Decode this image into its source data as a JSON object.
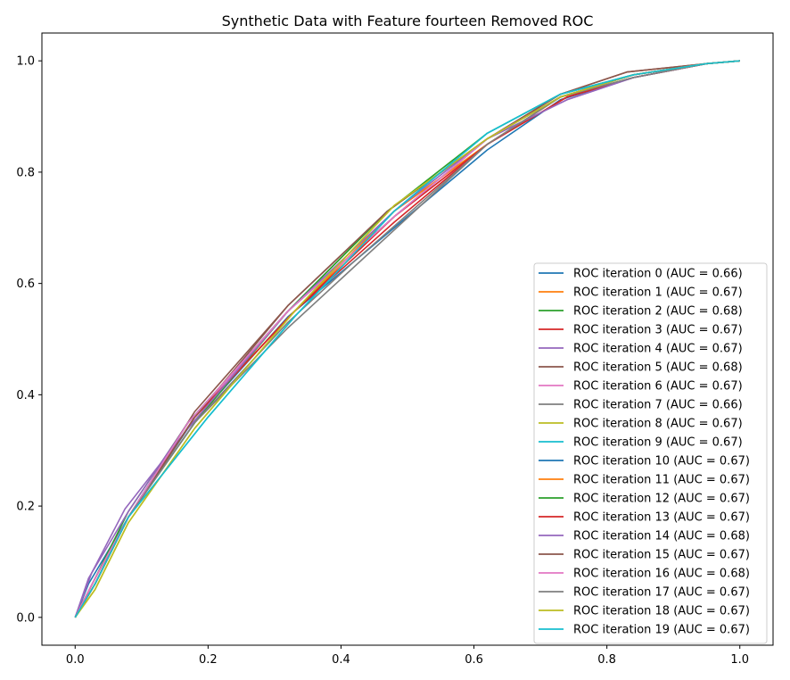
{
  "chart_data": {
    "type": "line",
    "title": "Synthetic Data with Feature fourteen Removed ROC",
    "xlabel": "",
    "ylabel": "",
    "xlim": [
      -0.05,
      1.05
    ],
    "ylim": [
      -0.05,
      1.05
    ],
    "x_ticks": [
      "0.0",
      "0.2",
      "0.4",
      "0.6",
      "0.8",
      "1.0"
    ],
    "y_ticks": [
      "0.0",
      "0.2",
      "0.4",
      "0.6",
      "0.8",
      "1.0"
    ],
    "grid": false,
    "legend_position": "lower-right",
    "series": [
      {
        "name": "ROC iteration 0 (AUC = 0.66)",
        "color": "#1f77b4",
        "points": [
          [
            0,
            0
          ],
          [
            0.02,
            0.06
          ],
          [
            0.08,
            0.18
          ],
          [
            0.17,
            0.34
          ],
          [
            0.32,
            0.54
          ],
          [
            0.5,
            0.72
          ],
          [
            0.62,
            0.84
          ],
          [
            0.73,
            0.93
          ],
          [
            0.84,
            0.97
          ],
          [
            0.95,
            0.995
          ],
          [
            1,
            1
          ]
        ]
      },
      {
        "name": "ROC iteration 1 (AUC = 0.67)",
        "color": "#ff7f0e",
        "points": [
          [
            0,
            0
          ],
          [
            0.03,
            0.06
          ],
          [
            0.08,
            0.18
          ],
          [
            0.18,
            0.36
          ],
          [
            0.33,
            0.55
          ],
          [
            0.48,
            0.73
          ],
          [
            0.62,
            0.85
          ],
          [
            0.73,
            0.935
          ],
          [
            0.84,
            0.975
          ],
          [
            0.95,
            0.995
          ],
          [
            1,
            1
          ]
        ]
      },
      {
        "name": "ROC iteration 2 (AUC = 0.68)",
        "color": "#2ca02c",
        "points": [
          [
            0,
            0
          ],
          [
            0.03,
            0.07
          ],
          [
            0.08,
            0.19
          ],
          [
            0.17,
            0.35
          ],
          [
            0.32,
            0.55
          ],
          [
            0.47,
            0.73
          ],
          [
            0.62,
            0.87
          ],
          [
            0.73,
            0.94
          ],
          [
            0.84,
            0.975
          ],
          [
            0.95,
            0.995
          ],
          [
            1,
            1
          ]
        ]
      },
      {
        "name": "ROC iteration 3 (AUC = 0.67)",
        "color": "#d62728",
        "points": [
          [
            0,
            0
          ],
          [
            0.03,
            0.06
          ],
          [
            0.08,
            0.18
          ],
          [
            0.18,
            0.36
          ],
          [
            0.33,
            0.55
          ],
          [
            0.48,
            0.71
          ],
          [
            0.62,
            0.85
          ],
          [
            0.74,
            0.935
          ],
          [
            0.84,
            0.97
          ],
          [
            0.95,
            0.995
          ],
          [
            1,
            1
          ]
        ]
      },
      {
        "name": "ROC iteration 4 (AUC = 0.67)",
        "color": "#9467bd",
        "points": [
          [
            0,
            0
          ],
          [
            0.02,
            0.07
          ],
          [
            0.08,
            0.19
          ],
          [
            0.17,
            0.35
          ],
          [
            0.32,
            0.55
          ],
          [
            0.48,
            0.72
          ],
          [
            0.62,
            0.86
          ],
          [
            0.74,
            0.93
          ],
          [
            0.84,
            0.97
          ],
          [
            0.95,
            0.995
          ],
          [
            1,
            1
          ]
        ]
      },
      {
        "name": "ROC iteration 5 (AUC = 0.68)",
        "color": "#8c564b",
        "points": [
          [
            0,
            0
          ],
          [
            0.03,
            0.07
          ],
          [
            0.08,
            0.18
          ],
          [
            0.18,
            0.37
          ],
          [
            0.32,
            0.56
          ],
          [
            0.47,
            0.73
          ],
          [
            0.62,
            0.86
          ],
          [
            0.73,
            0.94
          ],
          [
            0.83,
            0.98
          ],
          [
            0.95,
            0.995
          ],
          [
            1,
            1
          ]
        ]
      },
      {
        "name": "ROC iteration 6 (AUC = 0.67)",
        "color": "#e377c2",
        "points": [
          [
            0,
            0
          ],
          [
            0.03,
            0.07
          ],
          [
            0.08,
            0.18
          ],
          [
            0.18,
            0.36
          ],
          [
            0.32,
            0.55
          ],
          [
            0.48,
            0.72
          ],
          [
            0.62,
            0.85
          ],
          [
            0.73,
            0.935
          ],
          [
            0.84,
            0.975
          ],
          [
            0.95,
            0.995
          ],
          [
            1,
            1
          ]
        ]
      },
      {
        "name": "ROC iteration 7 (AUC = 0.66)",
        "color": "#7f7f7f",
        "points": [
          [
            0,
            0
          ],
          [
            0.03,
            0.06
          ],
          [
            0.08,
            0.18
          ],
          [
            0.18,
            0.35
          ],
          [
            0.32,
            0.52
          ],
          [
            0.42,
            0.63
          ],
          [
            0.62,
            0.85
          ],
          [
            0.73,
            0.935
          ],
          [
            0.84,
            0.97
          ],
          [
            0.95,
            0.995
          ],
          [
            1,
            1
          ]
        ]
      },
      {
        "name": "ROC iteration 8 (AUC = 0.67)",
        "color": "#bcbd22",
        "points": [
          [
            0,
            0
          ],
          [
            0.03,
            0.05
          ],
          [
            0.08,
            0.17
          ],
          [
            0.18,
            0.34
          ],
          [
            0.33,
            0.55
          ],
          [
            0.48,
            0.74
          ],
          [
            0.62,
            0.86
          ],
          [
            0.73,
            0.935
          ],
          [
            0.84,
            0.975
          ],
          [
            0.95,
            0.995
          ],
          [
            1,
            1
          ]
        ]
      },
      {
        "name": "ROC iteration 9 (AUC = 0.67)",
        "color": "#17becf",
        "points": [
          [
            0,
            0
          ],
          [
            0.03,
            0.06
          ],
          [
            0.08,
            0.18
          ],
          [
            0.2,
            0.36
          ],
          [
            0.33,
            0.54
          ],
          [
            0.48,
            0.73
          ],
          [
            0.62,
            0.87
          ],
          [
            0.73,
            0.94
          ],
          [
            0.84,
            0.975
          ],
          [
            0.95,
            0.995
          ],
          [
            1,
            1
          ]
        ]
      },
      {
        "name": "ROC iteration 10 (AUC = 0.67)",
        "color": "#1f77b4",
        "points": [
          [
            0,
            0
          ],
          [
            0.03,
            0.06
          ],
          [
            0.08,
            0.18
          ],
          [
            0.17,
            0.35
          ],
          [
            0.32,
            0.55
          ],
          [
            0.48,
            0.72
          ],
          [
            0.62,
            0.86
          ],
          [
            0.73,
            0.935
          ],
          [
            0.84,
            0.975
          ],
          [
            0.95,
            0.995
          ],
          [
            1,
            1
          ]
        ]
      },
      {
        "name": "ROC iteration 11 (AUC = 0.67)",
        "color": "#ff7f0e",
        "points": [
          [
            0,
            0
          ],
          [
            0.03,
            0.06
          ],
          [
            0.08,
            0.18
          ],
          [
            0.18,
            0.36
          ],
          [
            0.33,
            0.55
          ],
          [
            0.48,
            0.73
          ],
          [
            0.62,
            0.85
          ],
          [
            0.73,
            0.935
          ],
          [
            0.84,
            0.975
          ],
          [
            0.95,
            0.995
          ],
          [
            1,
            1
          ]
        ]
      },
      {
        "name": "ROC iteration 12 (AUC = 0.67)",
        "color": "#2ca02c",
        "points": [
          [
            0,
            0
          ],
          [
            0.03,
            0.06
          ],
          [
            0.08,
            0.18
          ],
          [
            0.18,
            0.35
          ],
          [
            0.32,
            0.55
          ],
          [
            0.47,
            0.73
          ],
          [
            0.62,
            0.86
          ],
          [
            0.73,
            0.935
          ],
          [
            0.84,
            0.975
          ],
          [
            0.95,
            0.995
          ],
          [
            1,
            1
          ]
        ]
      },
      {
        "name": "ROC iteration 13 (AUC = 0.67)",
        "color": "#d62728",
        "points": [
          [
            0,
            0
          ],
          [
            0.03,
            0.06
          ],
          [
            0.08,
            0.18
          ],
          [
            0.18,
            0.36
          ],
          [
            0.33,
            0.55
          ],
          [
            0.48,
            0.72
          ],
          [
            0.62,
            0.85
          ],
          [
            0.74,
            0.935
          ],
          [
            0.84,
            0.97
          ],
          [
            0.95,
            0.995
          ],
          [
            1,
            1
          ]
        ]
      },
      {
        "name": "ROC iteration 14 (AUC = 0.68)",
        "color": "#9467bd",
        "points": [
          [
            0,
            0
          ],
          [
            0.025,
            0.08
          ],
          [
            0.075,
            0.195
          ],
          [
            0.17,
            0.34
          ],
          [
            0.32,
            0.55
          ],
          [
            0.48,
            0.73
          ],
          [
            0.62,
            0.86
          ],
          [
            0.74,
            0.93
          ],
          [
            0.84,
            0.97
          ],
          [
            0.95,
            0.995
          ],
          [
            1,
            1
          ]
        ]
      },
      {
        "name": "ROC iteration 15 (AUC = 0.67)",
        "color": "#8c564b",
        "points": [
          [
            0,
            0
          ],
          [
            0.03,
            0.07
          ],
          [
            0.08,
            0.18
          ],
          [
            0.18,
            0.36
          ],
          [
            0.32,
            0.56
          ],
          [
            0.47,
            0.73
          ],
          [
            0.62,
            0.86
          ],
          [
            0.73,
            0.94
          ],
          [
            0.83,
            0.98
          ],
          [
            0.95,
            0.995
          ],
          [
            1,
            1
          ]
        ]
      },
      {
        "name": "ROC iteration 16 (AUC = 0.68)",
        "color": "#e377c2",
        "points": [
          [
            0,
            0
          ],
          [
            0.03,
            0.07
          ],
          [
            0.08,
            0.18
          ],
          [
            0.17,
            0.35
          ],
          [
            0.32,
            0.55
          ],
          [
            0.48,
            0.72
          ],
          [
            0.62,
            0.86
          ],
          [
            0.73,
            0.935
          ],
          [
            0.84,
            0.975
          ],
          [
            0.95,
            0.995
          ],
          [
            1,
            1
          ]
        ]
      },
      {
        "name": "ROC iteration 17 (AUC = 0.67)",
        "color": "#7f7f7f",
        "points": [
          [
            0,
            0
          ],
          [
            0.03,
            0.06
          ],
          [
            0.08,
            0.18
          ],
          [
            0.18,
            0.35
          ],
          [
            0.32,
            0.53
          ],
          [
            0.42,
            0.64
          ],
          [
            0.62,
            0.85
          ],
          [
            0.73,
            0.935
          ],
          [
            0.84,
            0.97
          ],
          [
            0.95,
            0.995
          ],
          [
            1,
            1
          ]
        ]
      },
      {
        "name": "ROC iteration 18 (AUC = 0.67)",
        "color": "#bcbd22",
        "points": [
          [
            0,
            0
          ],
          [
            0.03,
            0.05
          ],
          [
            0.08,
            0.17
          ],
          [
            0.18,
            0.34
          ],
          [
            0.33,
            0.55
          ],
          [
            0.48,
            0.74
          ],
          [
            0.62,
            0.86
          ],
          [
            0.73,
            0.935
          ],
          [
            0.84,
            0.975
          ],
          [
            0.95,
            0.995
          ],
          [
            1,
            1
          ]
        ]
      },
      {
        "name": "ROC iteration 19 (AUC = 0.67)",
        "color": "#17becf",
        "points": [
          [
            0,
            0
          ],
          [
            0.03,
            0.06
          ],
          [
            0.08,
            0.18
          ],
          [
            0.2,
            0.36
          ],
          [
            0.33,
            0.54
          ],
          [
            0.48,
            0.73
          ],
          [
            0.62,
            0.87
          ],
          [
            0.73,
            0.94
          ],
          [
            0.84,
            0.975
          ],
          [
            0.95,
            0.995
          ],
          [
            1,
            1
          ]
        ]
      }
    ]
  }
}
